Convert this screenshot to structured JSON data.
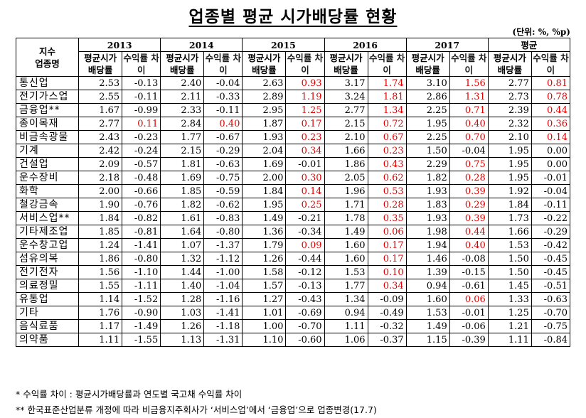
{
  "title": "업종별 평균 시가배당률 현황",
  "unit": "(단위: %, %p)",
  "header": {
    "corner_line1": "지수",
    "corner_line2": "업종명",
    "years": [
      "2013",
      "2014",
      "2015",
      "2016",
      "2017",
      "평균"
    ],
    "sub1": "평균시가 배당률",
    "sub2": "수익률 차이"
  },
  "rows": [
    {
      "name": "통신업",
      "vals": [
        [
          "2.53",
          "-0.13"
        ],
        [
          "2.40",
          "-0.04"
        ],
        [
          "2.63",
          "0.93"
        ],
        [
          "3.17",
          "1.74"
        ],
        [
          "3.10",
          "1.56"
        ],
        [
          "2.77",
          "0.81"
        ]
      ],
      "red": [
        false,
        false,
        true,
        true,
        true,
        true
      ]
    },
    {
      "name": "전기가스업",
      "vals": [
        [
          "2.55",
          "-0.11"
        ],
        [
          "2.11",
          "-0.33"
        ],
        [
          "2.89",
          "1.19"
        ],
        [
          "3.24",
          "1.81"
        ],
        [
          "2.86",
          "1.31"
        ],
        [
          "2.73",
          "0.78"
        ]
      ],
      "red": [
        false,
        false,
        true,
        true,
        true,
        true
      ]
    },
    {
      "name": "금융업**",
      "vals": [
        [
          "1.67",
          "-0.99"
        ],
        [
          "2.33",
          "-0.11"
        ],
        [
          "2.95",
          "1.25"
        ],
        [
          "2.77",
          "1.34"
        ],
        [
          "2.25",
          "0.71"
        ],
        [
          "2.39",
          "0.44"
        ]
      ],
      "red": [
        false,
        false,
        true,
        true,
        true,
        true
      ]
    },
    {
      "name": "종이목재",
      "vals": [
        [
          "2.77",
          "0.11"
        ],
        [
          "2.84",
          "0.40"
        ],
        [
          "1.87",
          "0.17"
        ],
        [
          "2.15",
          "0.72"
        ],
        [
          "1.95",
          "0.40"
        ],
        [
          "2.32",
          "0.36"
        ]
      ],
      "red": [
        true,
        true,
        true,
        true,
        true,
        true
      ]
    },
    {
      "name": "비금속광물",
      "vals": [
        [
          "2.43",
          "-0.23"
        ],
        [
          "1.77",
          "-0.67"
        ],
        [
          "1.93",
          "0.23"
        ],
        [
          "2.10",
          "0.67"
        ],
        [
          "2.25",
          "0.70"
        ],
        [
          "2.10",
          "0.14"
        ]
      ],
      "red": [
        false,
        false,
        true,
        true,
        true,
        true
      ]
    },
    {
      "name": "기계",
      "vals": [
        [
          "2.42",
          "-0.24"
        ],
        [
          "2.15",
          "-0.29"
        ],
        [
          "2.04",
          "0.34"
        ],
        [
          "1.66",
          "0.23"
        ],
        [
          "1.50",
          "-0.04"
        ],
        [
          "1.95",
          "0.00"
        ]
      ],
      "red": [
        false,
        false,
        true,
        true,
        false,
        false
      ]
    },
    {
      "name": "건설업",
      "vals": [
        [
          "2.09",
          "-0.57"
        ],
        [
          "1.81",
          "-0.63"
        ],
        [
          "1.69",
          "-0.01"
        ],
        [
          "1.86",
          "0.43"
        ],
        [
          "2.29",
          "0.75"
        ],
        [
          "1.95",
          "0.00"
        ]
      ],
      "red": [
        false,
        false,
        false,
        true,
        true,
        false
      ]
    },
    {
      "name": "운수장비",
      "vals": [
        [
          "2.18",
          "-0.48"
        ],
        [
          "1.69",
          "-0.75"
        ],
        [
          "2.00",
          "0.30"
        ],
        [
          "2.05",
          "0.62"
        ],
        [
          "1.82",
          "0.28"
        ],
        [
          "1.95",
          "-0.01"
        ]
      ],
      "red": [
        false,
        false,
        true,
        true,
        true,
        false
      ]
    },
    {
      "name": "화학",
      "vals": [
        [
          "2.00",
          "-0.66"
        ],
        [
          "1.85",
          "-0.59"
        ],
        [
          "1.84",
          "0.14"
        ],
        [
          "1.96",
          "0.53"
        ],
        [
          "1.93",
          "0.39"
        ],
        [
          "1.92",
          "-0.04"
        ]
      ],
      "red": [
        false,
        false,
        true,
        true,
        true,
        false
      ]
    },
    {
      "name": "철강금속",
      "vals": [
        [
          "1.90",
          "-0.76"
        ],
        [
          "1.82",
          "-0.62"
        ],
        [
          "1.95",
          "0.25"
        ],
        [
          "1.71",
          "0.28"
        ],
        [
          "1.83",
          "0.29"
        ],
        [
          "1.84",
          "-0.11"
        ]
      ],
      "red": [
        false,
        false,
        true,
        true,
        true,
        false
      ]
    },
    {
      "name": "서비스업**",
      "vals": [
        [
          "1.84",
          "-0.82"
        ],
        [
          "1.61",
          "-0.83"
        ],
        [
          "1.49",
          "-0.21"
        ],
        [
          "1.78",
          "0.35"
        ],
        [
          "1.93",
          "0.39"
        ],
        [
          "1.73",
          "-0.22"
        ]
      ],
      "red": [
        false,
        false,
        false,
        true,
        true,
        false
      ]
    },
    {
      "name": "기타제조업",
      "vals": [
        [
          "1.85",
          "-0.81"
        ],
        [
          "1.64",
          "-0.80"
        ],
        [
          "1.36",
          "-0.34"
        ],
        [
          "1.49",
          "0.06"
        ],
        [
          "1.98",
          "0.44"
        ],
        [
          "1.66",
          "-0.29"
        ]
      ],
      "red": [
        false,
        false,
        false,
        true,
        true,
        false
      ]
    },
    {
      "name": "운수창고업",
      "vals": [
        [
          "1.24",
          "-1.41"
        ],
        [
          "1.07",
          "-1.37"
        ],
        [
          "1.79",
          "0.09"
        ],
        [
          "1.60",
          "0.17"
        ],
        [
          "1.94",
          "0.40"
        ],
        [
          "1.53",
          "-0.42"
        ]
      ],
      "red": [
        false,
        false,
        true,
        true,
        true,
        false
      ]
    },
    {
      "name": "섬유의복",
      "vals": [
        [
          "1.86",
          "-0.80"
        ],
        [
          "1.32",
          "-1.12"
        ],
        [
          "1.26",
          "-0.44"
        ],
        [
          "1.60",
          "0.17"
        ],
        [
          "1.46",
          "-0.08"
        ],
        [
          "1.50",
          "-0.45"
        ]
      ],
      "red": [
        false,
        false,
        false,
        true,
        false,
        false
      ]
    },
    {
      "name": "전기전자",
      "vals": [
        [
          "1.56",
          "-1.10"
        ],
        [
          "1.44",
          "-1.00"
        ],
        [
          "1.58",
          "-0.12"
        ],
        [
          "1.53",
          "0.10"
        ],
        [
          "1.39",
          "-0.15"
        ],
        [
          "1.50",
          "-0.45"
        ]
      ],
      "red": [
        false,
        false,
        false,
        true,
        false,
        false
      ]
    },
    {
      "name": "의료정밀",
      "vals": [
        [
          "1.55",
          "-1.11"
        ],
        [
          "1.40",
          "-1.04"
        ],
        [
          "1.57",
          "-0.13"
        ],
        [
          "1.77",
          "0.34"
        ],
        [
          "0.94",
          "-0.61"
        ],
        [
          "1.45",
          "-0.51"
        ]
      ],
      "red": [
        false,
        false,
        false,
        true,
        false,
        false
      ]
    },
    {
      "name": "유통업",
      "vals": [
        [
          "1.14",
          "-1.52"
        ],
        [
          "1.28",
          "-1.16"
        ],
        [
          "1.27",
          "-0.43"
        ],
        [
          "1.34",
          "-0.09"
        ],
        [
          "1.60",
          "0.06"
        ],
        [
          "1.33",
          "-0.63"
        ]
      ],
      "red": [
        false,
        false,
        false,
        false,
        true,
        false
      ]
    },
    {
      "name": "기타",
      "vals": [
        [
          "1.76",
          "-0.90"
        ],
        [
          "1.03",
          "-1.41"
        ],
        [
          "1.01",
          "-0.69"
        ],
        [
          "0.94",
          "-0.49"
        ],
        [
          "1.53",
          "-0.01"
        ],
        [
          "1.25",
          "-0.70"
        ]
      ],
      "red": [
        false,
        false,
        false,
        false,
        false,
        false
      ]
    },
    {
      "name": "음식료품",
      "vals": [
        [
          "1.17",
          "-1.49"
        ],
        [
          "1.26",
          "-1.18"
        ],
        [
          "1.00",
          "-0.70"
        ],
        [
          "1.11",
          "-0.32"
        ],
        [
          "1.49",
          "-0.06"
        ],
        [
          "1.21",
          "-0.75"
        ]
      ],
      "red": [
        false,
        false,
        false,
        false,
        false,
        false
      ]
    },
    {
      "name": "의약품",
      "vals": [
        [
          "1.11",
          "-1.55"
        ],
        [
          "1.13",
          "-1.31"
        ],
        [
          "1.10",
          "-0.60"
        ],
        [
          "1.06",
          "-0.37"
        ],
        [
          "1.15",
          "-0.39"
        ],
        [
          "1.11",
          "-0.84"
        ]
      ],
      "red": [
        false,
        false,
        false,
        false,
        false,
        false
      ]
    }
  ],
  "notes": {
    "note1": "* 수익률 차이 : 평균시가배당률과 연도별 국고채 수익률 차이",
    "note2": "** 한국표준산업분류 개정에 따라 비금융지주회사가 ‘서비스업’에서 ‘금융업’으로 업종변경(17.7)"
  }
}
